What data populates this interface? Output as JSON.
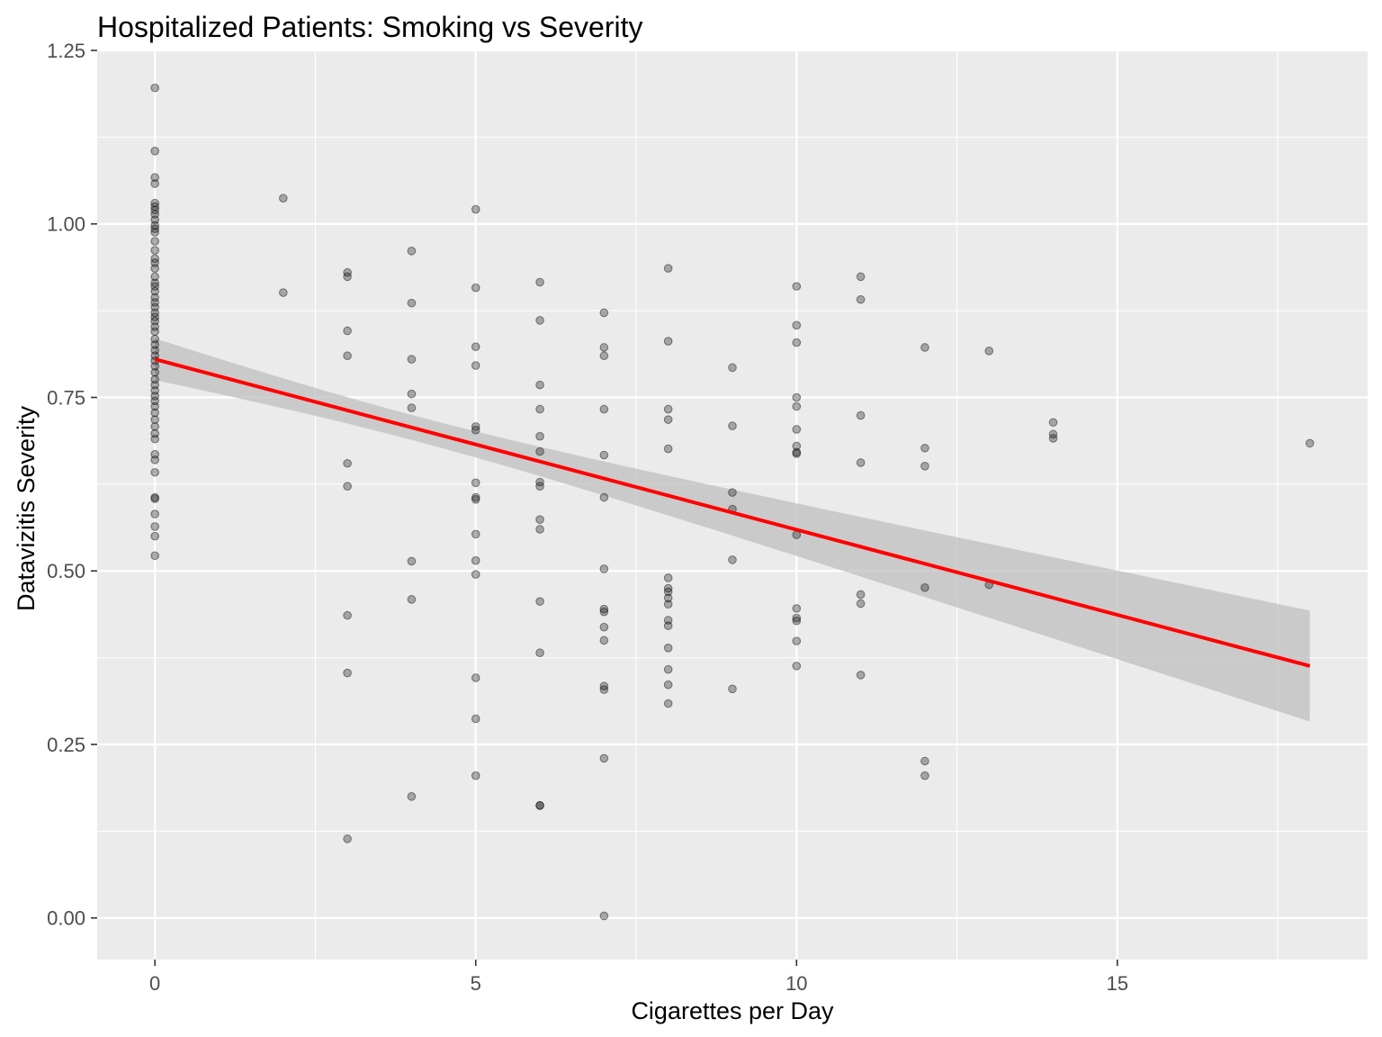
{
  "chart_data": {
    "type": "scatter",
    "title": "Hospitalized Patients: Smoking vs Severity",
    "xlabel": "Cigarettes per Day",
    "ylabel": "Datavizitis Severity",
    "xlim": [
      -0.9,
      18.9
    ],
    "ylim": [
      -0.06,
      1.25
    ],
    "x_ticks": [
      0,
      5,
      10,
      15
    ],
    "x_tick_labels": [
      "0",
      "5",
      "10",
      "15"
    ],
    "y_ticks": [
      0,
      0.25,
      0.5,
      0.75,
      1.0,
      1.25
    ],
    "y_tick_labels": [
      "0.00",
      "0.25",
      "0.50",
      "0.75",
      "1.00",
      "1.25"
    ],
    "grid": true,
    "legend": "none",
    "colors": {
      "panel": "#ebebeb",
      "grid": "#ffffff",
      "points": "#000000",
      "fit_line": "#ff0000",
      "ribbon": "#bfbfbf"
    },
    "series": [
      {
        "type": "scatter",
        "points": [
          [
            0,
            1.196
          ],
          [
            0,
            1.105
          ],
          [
            0,
            1.067
          ],
          [
            0,
            1.058
          ],
          [
            0,
            1.03
          ],
          [
            0,
            1.025
          ],
          [
            0,
            1.02
          ],
          [
            0,
            1.014
          ],
          [
            0,
            1.006
          ],
          [
            0,
            0.998
          ],
          [
            0,
            0.993
          ],
          [
            0,
            0.988
          ],
          [
            0,
            0.975
          ],
          [
            0,
            0.962
          ],
          [
            0,
            0.95
          ],
          [
            0,
            0.944
          ],
          [
            0,
            0.936
          ],
          [
            0,
            0.924
          ],
          [
            0,
            0.915
          ],
          [
            0,
            0.91
          ],
          [
            0,
            0.903
          ],
          [
            0,
            0.894
          ],
          [
            0,
            0.887
          ],
          [
            0,
            0.88
          ],
          [
            0,
            0.872
          ],
          [
            0,
            0.866
          ],
          [
            0,
            0.86
          ],
          [
            0,
            0.852
          ],
          [
            0,
            0.845
          ],
          [
            0,
            0.834
          ],
          [
            0,
            0.826
          ],
          [
            0,
            0.818
          ],
          [
            0,
            0.81
          ],
          [
            0,
            0.803
          ],
          [
            0,
            0.795
          ],
          [
            0,
            0.786
          ],
          [
            0,
            0.776
          ],
          [
            0,
            0.768
          ],
          [
            0,
            0.76
          ],
          [
            0,
            0.752
          ],
          [
            0,
            0.745
          ],
          [
            0,
            0.737
          ],
          [
            0,
            0.728
          ],
          [
            0,
            0.718
          ],
          [
            0,
            0.708
          ],
          [
            0,
            0.698
          ],
          [
            0,
            0.69
          ],
          [
            0,
            0.668
          ],
          [
            0,
            0.66
          ],
          [
            0,
            0.642
          ],
          [
            0,
            0.606
          ],
          [
            0,
            0.604
          ],
          [
            0,
            0.582
          ],
          [
            0,
            0.564
          ],
          [
            0,
            0.55
          ],
          [
            0,
            0.522
          ],
          [
            2,
            1.037
          ],
          [
            2,
            0.901
          ],
          [
            3,
            0.93
          ],
          [
            3,
            0.924
          ],
          [
            3,
            0.846
          ],
          [
            3,
            0.81
          ],
          [
            3,
            0.655
          ],
          [
            3,
            0.622
          ],
          [
            3,
            0.436
          ],
          [
            3,
            0.353
          ],
          [
            3,
            0.114
          ],
          [
            4,
            0.961
          ],
          [
            4,
            0.886
          ],
          [
            4,
            0.805
          ],
          [
            4,
            0.755
          ],
          [
            4,
            0.735
          ],
          [
            4,
            0.514
          ],
          [
            4,
            0.459
          ],
          [
            4,
            0.175
          ],
          [
            5,
            1.021
          ],
          [
            5,
            0.908
          ],
          [
            5,
            0.823
          ],
          [
            5,
            0.796
          ],
          [
            5,
            0.708
          ],
          [
            5,
            0.703
          ],
          [
            5,
            0.627
          ],
          [
            5,
            0.606
          ],
          [
            5,
            0.603
          ],
          [
            5,
            0.553
          ],
          [
            5,
            0.515
          ],
          [
            5,
            0.495
          ],
          [
            5,
            0.346
          ],
          [
            5,
            0.287
          ],
          [
            5,
            0.205
          ],
          [
            6,
            0.916
          ],
          [
            6,
            0.861
          ],
          [
            6,
            0.768
          ],
          [
            6,
            0.733
          ],
          [
            6,
            0.694
          ],
          [
            6,
            0.672
          ],
          [
            6,
            0.628
          ],
          [
            6,
            0.622
          ],
          [
            6,
            0.574
          ],
          [
            6,
            0.56
          ],
          [
            6,
            0.456
          ],
          [
            6,
            0.382
          ],
          [
            6,
            0.162
          ],
          [
            6,
            0.162
          ],
          [
            7,
            0.872
          ],
          [
            7,
            0.822
          ],
          [
            7,
            0.81
          ],
          [
            7,
            0.733
          ],
          [
            7,
            0.667
          ],
          [
            7,
            0.606
          ],
          [
            7,
            0.503
          ],
          [
            7,
            0.445
          ],
          [
            7,
            0.441
          ],
          [
            7,
            0.419
          ],
          [
            7,
            0.4
          ],
          [
            7,
            0.334
          ],
          [
            7,
            0.329
          ],
          [
            7,
            0.23
          ],
          [
            7,
            0.003
          ],
          [
            8,
            0.936
          ],
          [
            8,
            0.831
          ],
          [
            8,
            0.733
          ],
          [
            8,
            0.718
          ],
          [
            8,
            0.676
          ],
          [
            8,
            0.49
          ],
          [
            8,
            0.475
          ],
          [
            8,
            0.47
          ],
          [
            8,
            0.461
          ],
          [
            8,
            0.452
          ],
          [
            8,
            0.429
          ],
          [
            8,
            0.421
          ],
          [
            8,
            0.389
          ],
          [
            8,
            0.358
          ],
          [
            8,
            0.336
          ],
          [
            8,
            0.309
          ],
          [
            9,
            0.793
          ],
          [
            9,
            0.709
          ],
          [
            9,
            0.613
          ],
          [
            9,
            0.589
          ],
          [
            9,
            0.516
          ],
          [
            9,
            0.33
          ],
          [
            10,
            0.91
          ],
          [
            10,
            0.854
          ],
          [
            10,
            0.829
          ],
          [
            10,
            0.75
          ],
          [
            10,
            0.737
          ],
          [
            10,
            0.704
          ],
          [
            10,
            0.68
          ],
          [
            10,
            0.671
          ],
          [
            10,
            0.669
          ],
          [
            10,
            0.552
          ],
          [
            10,
            0.446
          ],
          [
            10,
            0.432
          ],
          [
            10,
            0.428
          ],
          [
            10,
            0.399
          ],
          [
            10,
            0.363
          ],
          [
            11,
            0.924
          ],
          [
            11,
            0.891
          ],
          [
            11,
            0.724
          ],
          [
            11,
            0.656
          ],
          [
            11,
            0.466
          ],
          [
            11,
            0.453
          ],
          [
            11,
            0.35
          ],
          [
            12,
            0.822
          ],
          [
            12,
            0.677
          ],
          [
            12,
            0.651
          ],
          [
            12,
            0.476
          ],
          [
            12,
            0.226
          ],
          [
            12,
            0.205
          ],
          [
            13,
            0.817
          ],
          [
            13,
            0.48
          ],
          [
            14,
            0.714
          ],
          [
            14,
            0.697
          ],
          [
            14,
            0.691
          ],
          [
            18,
            0.684
          ]
        ]
      },
      {
        "type": "line",
        "fit": "linear",
        "x": [
          0,
          18
        ],
        "y": [
          0.805,
          0.363
        ],
        "ci_lower": [
          0.775,
          0.283
        ],
        "ci_upper": [
          0.835,
          0.443
        ]
      }
    ]
  }
}
